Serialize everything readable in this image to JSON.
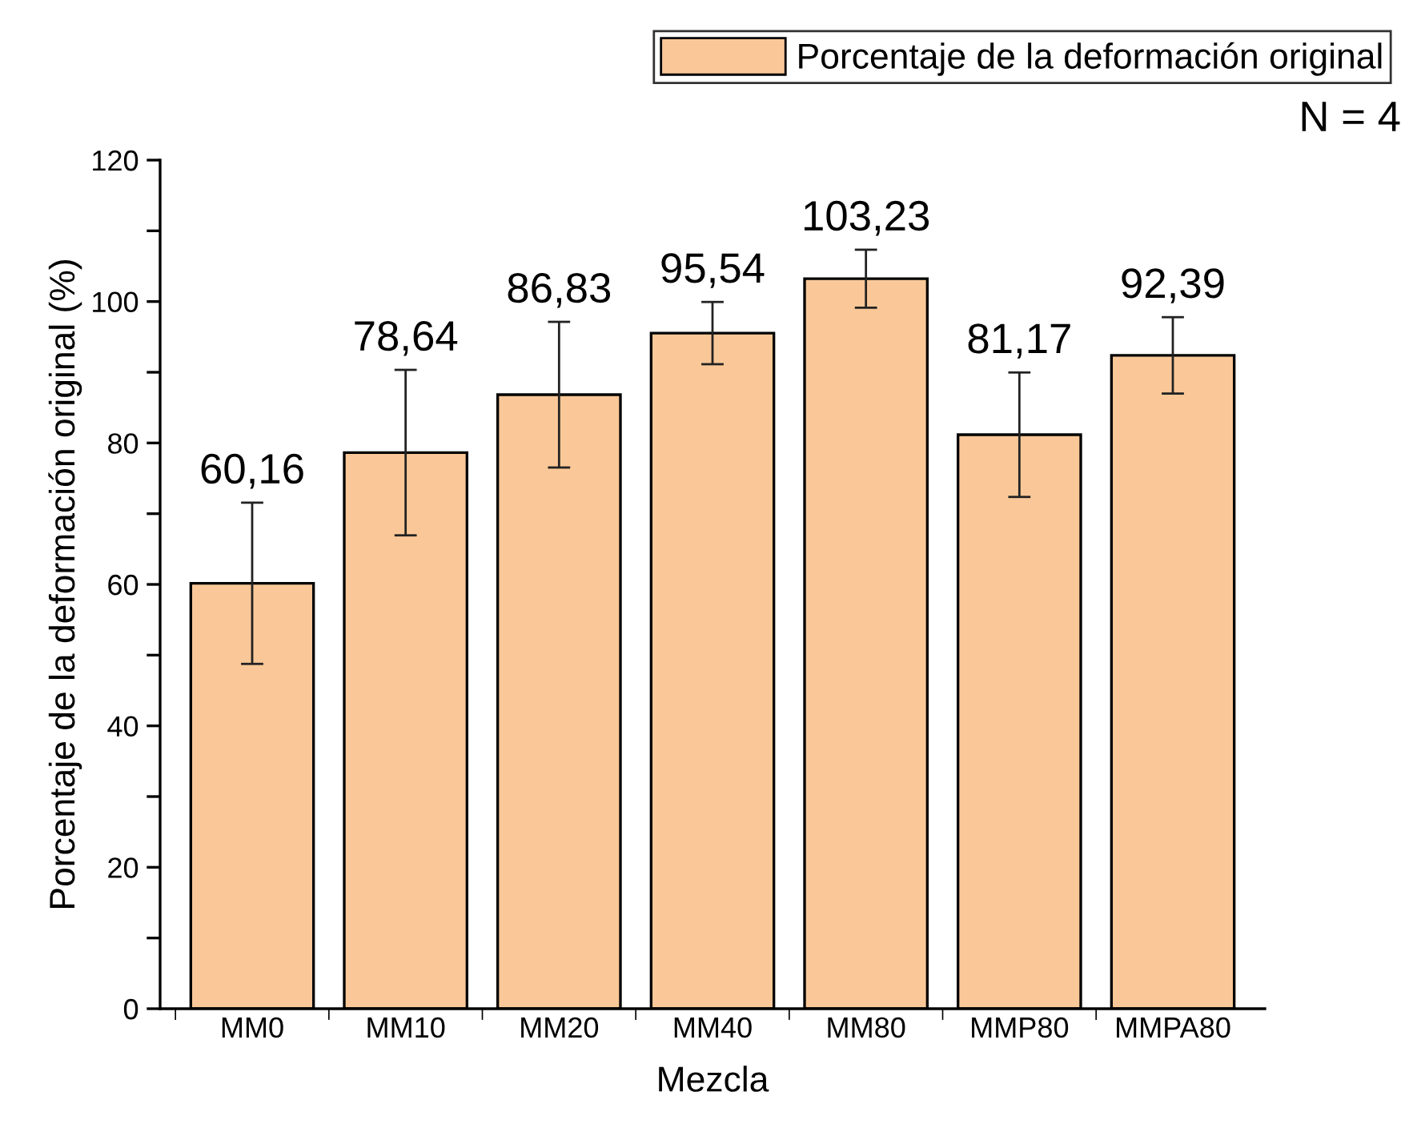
{
  "chart_data": {
    "type": "bar",
    "xlabel": "Mezcla",
    "ylabel": "Porcentaje de la deformación original (%)",
    "categories": [
      "MM0",
      "MM10",
      "MM20",
      "MM40",
      "MM80",
      "MMP80",
      "MMPA80"
    ],
    "series": [
      {
        "name": "Porcentaje de la deformación original",
        "color": "#fac898",
        "values": [
          60.16,
          78.64,
          86.83,
          95.54,
          103.23,
          81.17,
          92.39
        ],
        "errors": [
          11.4,
          11.7,
          10.3,
          4.4,
          4.1,
          8.8,
          5.4
        ],
        "value_labels": [
          "60,16",
          "78,64",
          "86,83",
          "95,54",
          "103,23",
          "81,17",
          "92,39"
        ]
      }
    ],
    "ylim": [
      0,
      120
    ],
    "yticks": [
      0,
      {
        "value": 10,
        "label": null
      },
      20,
      {
        "value": 30,
        "label": null
      },
      40,
      {
        "value": 50,
        "label": null
      },
      60,
      {
        "value": 70,
        "label": null
      },
      80,
      {
        "value": 90,
        "label": null
      },
      100,
      {
        "value": 110,
        "label": null
      },
      120
    ],
    "annotations": [
      "N = 4"
    ],
    "legend": "top right",
    "grid": false
  }
}
